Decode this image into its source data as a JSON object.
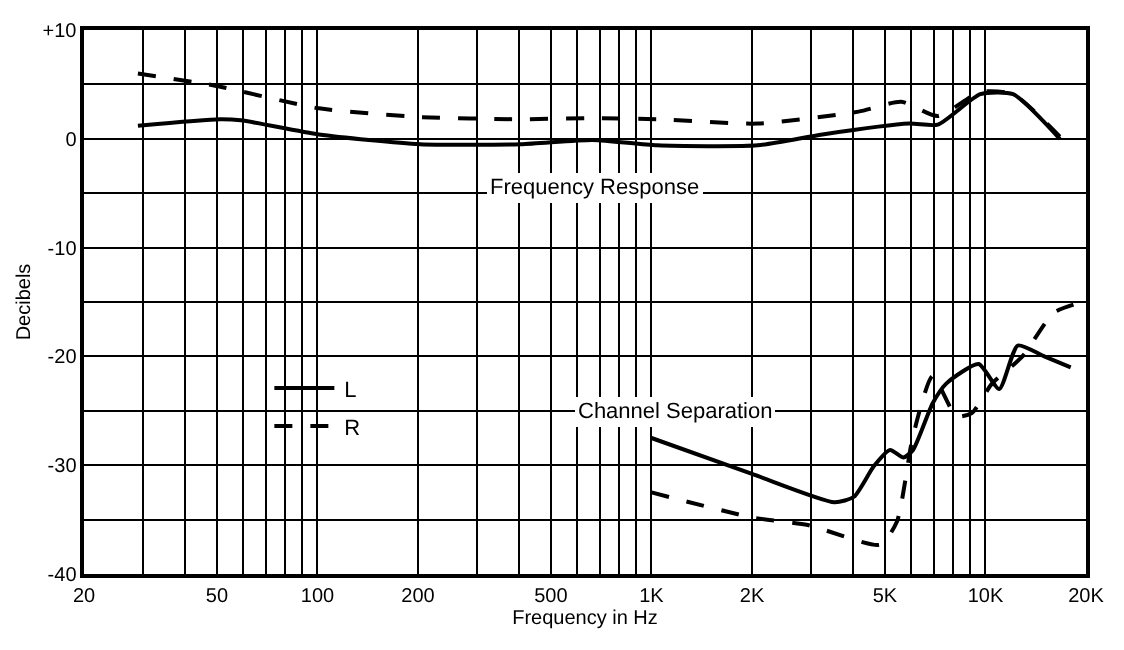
{
  "chart_data": {
    "type": "line",
    "xlabel": "Frequency in Hz",
    "ylabel": "Decibels",
    "log": "x",
    "grid": true,
    "legend": "left",
    "marker": "none",
    "xlim": [
      20,
      20000
    ],
    "ylim": [
      -40,
      10
    ],
    "xticks": [
      20,
      {
        "value": 30,
        "label": null
      },
      {
        "value": 40,
        "label": null
      },
      50,
      {
        "value": 60,
        "label": null
      },
      {
        "value": 70,
        "label": null
      },
      {
        "value": 80,
        "label": null
      },
      {
        "value": 90,
        "label": null
      },
      100,
      200,
      {
        "value": 300,
        "label": null
      },
      {
        "value": 400,
        "label": null
      },
      500,
      {
        "value": 600,
        "label": null
      },
      {
        "value": 700,
        "label": null
      },
      {
        "value": 800,
        "label": null
      },
      {
        "value": 900,
        "label": null
      },
      {
        "value": 1000,
        "label": "1K"
      },
      {
        "value": 2000,
        "label": "2K"
      },
      {
        "value": 3000,
        "label": null
      },
      {
        "value": 4000,
        "label": null
      },
      {
        "value": 5000,
        "label": "5K"
      },
      {
        "value": 6000,
        "label": null
      },
      {
        "value": 7000,
        "label": null
      },
      {
        "value": 8000,
        "label": null
      },
      {
        "value": 9000,
        "label": null
      },
      {
        "value": 10000,
        "label": "10K"
      },
      {
        "value": 20000,
        "label": "20K"
      }
    ],
    "yticks": [
      -40,
      {
        "value": -35,
        "label": null
      },
      -30,
      {
        "value": -25,
        "label": null
      },
      -20,
      {
        "value": -15,
        "label": null
      },
      -10,
      {
        "value": -5,
        "label": null
      },
      0,
      {
        "value": 5,
        "label": null
      },
      {
        "value": 10,
        "label": "+10"
      }
    ],
    "series": [
      {
        "name": "L",
        "color": "#000000",
        "line_style": "solid",
        "x": [
          29,
          51,
          59,
          101,
          203,
          406,
          667,
          1040,
          2080,
          3250,
          5900,
          7200,
          9650,
          12100,
          16700
        ],
        "values": [
          1.2,
          1.8,
          1.7,
          0.4,
          -0.5,
          -0.5,
          -0.1,
          -0.6,
          -0.6,
          0.4,
          1.4,
          1.3,
          4.1,
          4.1,
          0
        ]
      },
      {
        "name": "R",
        "color": "#000000",
        "line_style": "dashed",
        "x": [
          29,
          49,
          101,
          203,
          406,
          667,
          1040,
          2080,
          4170,
          5600,
          7200,
          9650,
          12100,
          16700
        ],
        "values": [
          6.0,
          4.9,
          2.8,
          2.0,
          1.8,
          1.9,
          1.8,
          1.4,
          2.5,
          3.4,
          2.1,
          4.3,
          4.1,
          0.2
        ]
      },
      {
        "color": "#000000",
        "line_style": "solid",
        "x": [
          1000,
          2000,
          3530,
          4040,
          4630,
          5180,
          5680,
          6070,
          6950,
          7630,
          9540,
          11000,
          12500,
          15000,
          18000
        ],
        "values": [
          -27.5,
          -30.8,
          -33.4,
          -32.9,
          -30.1,
          -28.6,
          -29.3,
          -28.6,
          -24.3,
          -22.5,
          -20.7,
          -23,
          -19,
          -20,
          -21
        ]
      },
      {
        "color": "#000000",
        "line_style": "dashed",
        "x": [
          1000,
          2000,
          2940,
          4840,
          5430,
          6070,
          6950,
          8180,
          9100,
          10460,
          12900,
          16000,
          19500
        ],
        "values": [
          -32.5,
          -34.8,
          -35.5,
          -37.3,
          -35.2,
          -27.3,
          -21.8,
          -25.5,
          -25.2,
          -22.5,
          -20,
          -16,
          -15
        ]
      }
    ],
    "annotations": [
      "Frequency Response",
      "Channel Separation"
    ]
  }
}
